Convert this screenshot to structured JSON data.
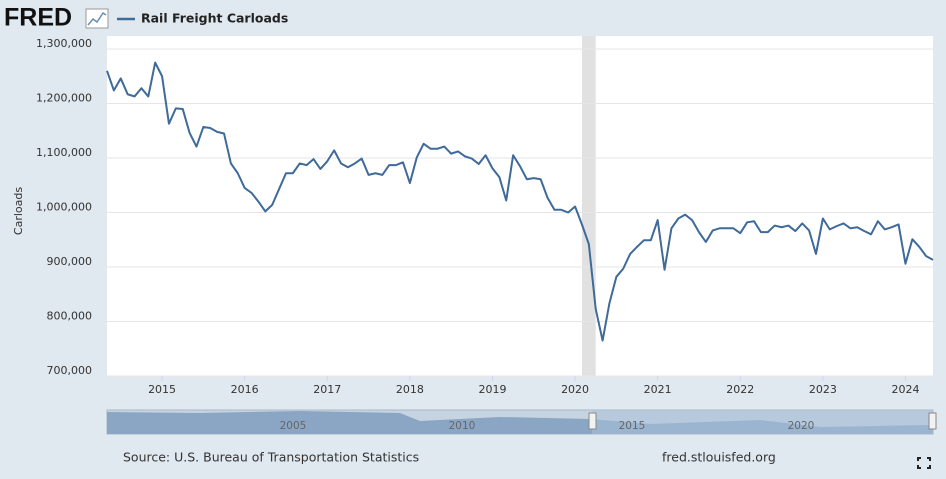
{
  "chart_data": {
    "type": "line",
    "logo": "FRED",
    "ylabel": "Carloads",
    "source": "Source: U.S. Bureau of Transportation Statistics",
    "site": "fred.stlouisfed.org",
    "x": [
      "2014-05",
      "2014-06",
      "2014-07",
      "2014-08",
      "2014-09",
      "2014-10",
      "2014-11",
      "2014-12",
      "2015-01",
      "2015-02",
      "2015-03",
      "2015-04",
      "2015-05",
      "2015-06",
      "2015-07",
      "2015-08",
      "2015-09",
      "2015-10",
      "2015-11",
      "2015-12",
      "2016-01",
      "2016-02",
      "2016-03",
      "2016-04",
      "2016-05",
      "2016-06",
      "2016-07",
      "2016-08",
      "2016-09",
      "2016-10",
      "2016-11",
      "2016-12",
      "2017-01",
      "2017-02",
      "2017-03",
      "2017-04",
      "2017-05",
      "2017-06",
      "2017-07",
      "2017-08",
      "2017-09",
      "2017-10",
      "2017-11",
      "2017-12",
      "2018-01",
      "2018-02",
      "2018-03",
      "2018-04",
      "2018-05",
      "2018-06",
      "2018-07",
      "2018-08",
      "2018-09",
      "2018-10",
      "2018-11",
      "2018-12",
      "2019-01",
      "2019-02",
      "2019-03",
      "2019-04",
      "2019-05",
      "2019-06",
      "2019-07",
      "2019-08",
      "2019-09",
      "2019-10",
      "2019-11",
      "2019-12",
      "2020-01",
      "2020-02",
      "2020-03",
      "2020-04",
      "2020-05",
      "2020-06",
      "2020-07",
      "2020-08",
      "2020-09",
      "2020-10",
      "2020-11",
      "2020-12",
      "2021-01",
      "2021-02",
      "2021-03",
      "2021-04",
      "2021-05",
      "2021-06",
      "2021-07",
      "2021-08",
      "2021-09",
      "2021-10",
      "2021-11",
      "2021-12",
      "2022-01",
      "2022-02",
      "2022-03",
      "2022-04",
      "2022-05",
      "2022-06",
      "2022-07",
      "2022-08",
      "2022-09",
      "2022-10",
      "2022-11",
      "2022-12",
      "2023-01",
      "2023-02",
      "2023-03",
      "2023-04",
      "2023-05",
      "2023-06",
      "2023-07",
      "2023-08",
      "2023-09",
      "2023-10",
      "2023-11",
      "2023-12",
      "2024-01",
      "2024-02",
      "2024-03",
      "2024-04",
      "2024-05"
    ],
    "series": [
      {
        "name": "Rail Freight Carloads",
        "color": "#3f6a99",
        "values": [
          1260000,
          1224000,
          1246000,
          1217000,
          1213000,
          1228000,
          1213000,
          1275000,
          1250000,
          1163000,
          1191000,
          1190000,
          1146000,
          1121000,
          1157000,
          1155000,
          1148000,
          1145000,
          1090000,
          1072000,
          1045000,
          1036000,
          1020000,
          1002000,
          1014000,
          1043000,
          1072000,
          1072000,
          1090000,
          1087000,
          1098000,
          1080000,
          1094000,
          1114000,
          1090000,
          1083000,
          1090000,
          1099000,
          1069000,
          1072000,
          1069000,
          1087000,
          1087000,
          1092000,
          1054000,
          1101000,
          1126000,
          1117000,
          1117000,
          1121000,
          1108000,
          1112000,
          1103000,
          1099000,
          1089000,
          1105000,
          1081000,
          1065000,
          1022000,
          1105000,
          1085000,
          1061000,
          1063000,
          1061000,
          1027000,
          1005000,
          1005000,
          1000000,
          1011000,
          978000,
          942000,
          823000,
          765000,
          834000,
          882000,
          897000,
          924000,
          937000,
          949000,
          949000,
          986000,
          895000,
          971000,
          989000,
          996000,
          986000,
          964000,
          946000,
          967000,
          971000,
          971000,
          971000,
          962000,
          982000,
          984000,
          964000,
          964000,
          976000,
          973000,
          976000,
          966000,
          980000,
          967000,
          924000,
          989000,
          969000,
          975000,
          980000,
          971000,
          973000,
          966000,
          960000,
          984000,
          969000,
          973000,
          978000,
          906000,
          951000,
          937000,
          920000,
          913000
        ]
      }
    ],
    "xlim": [
      "2014-05",
      "2024-05"
    ],
    "xticks": [
      "2015",
      "2016",
      "2017",
      "2018",
      "2019",
      "2020",
      "2021",
      "2022",
      "2023",
      "2024"
    ],
    "ylim": [
      700000,
      1300000
    ],
    "yticks": [
      {
        "value": 700000,
        "label": "700,000"
      },
      {
        "value": 800000,
        "label": "800,000"
      },
      {
        "value": 900000,
        "label": "900,000"
      },
      {
        "value": 1000000,
        "label": "1,000,000"
      },
      {
        "value": 1100000,
        "label": "1,100,000"
      },
      {
        "value": 1200000,
        "label": "1,200,000"
      },
      {
        "value": 1300000,
        "label": "1,300,000"
      }
    ],
    "grid": true,
    "recessions": [
      {
        "start": "2020-02",
        "end": "2020-04"
      }
    ],
    "navigator": {
      "labels": [
        "2005",
        "2010",
        "2015",
        "2020"
      ]
    }
  }
}
